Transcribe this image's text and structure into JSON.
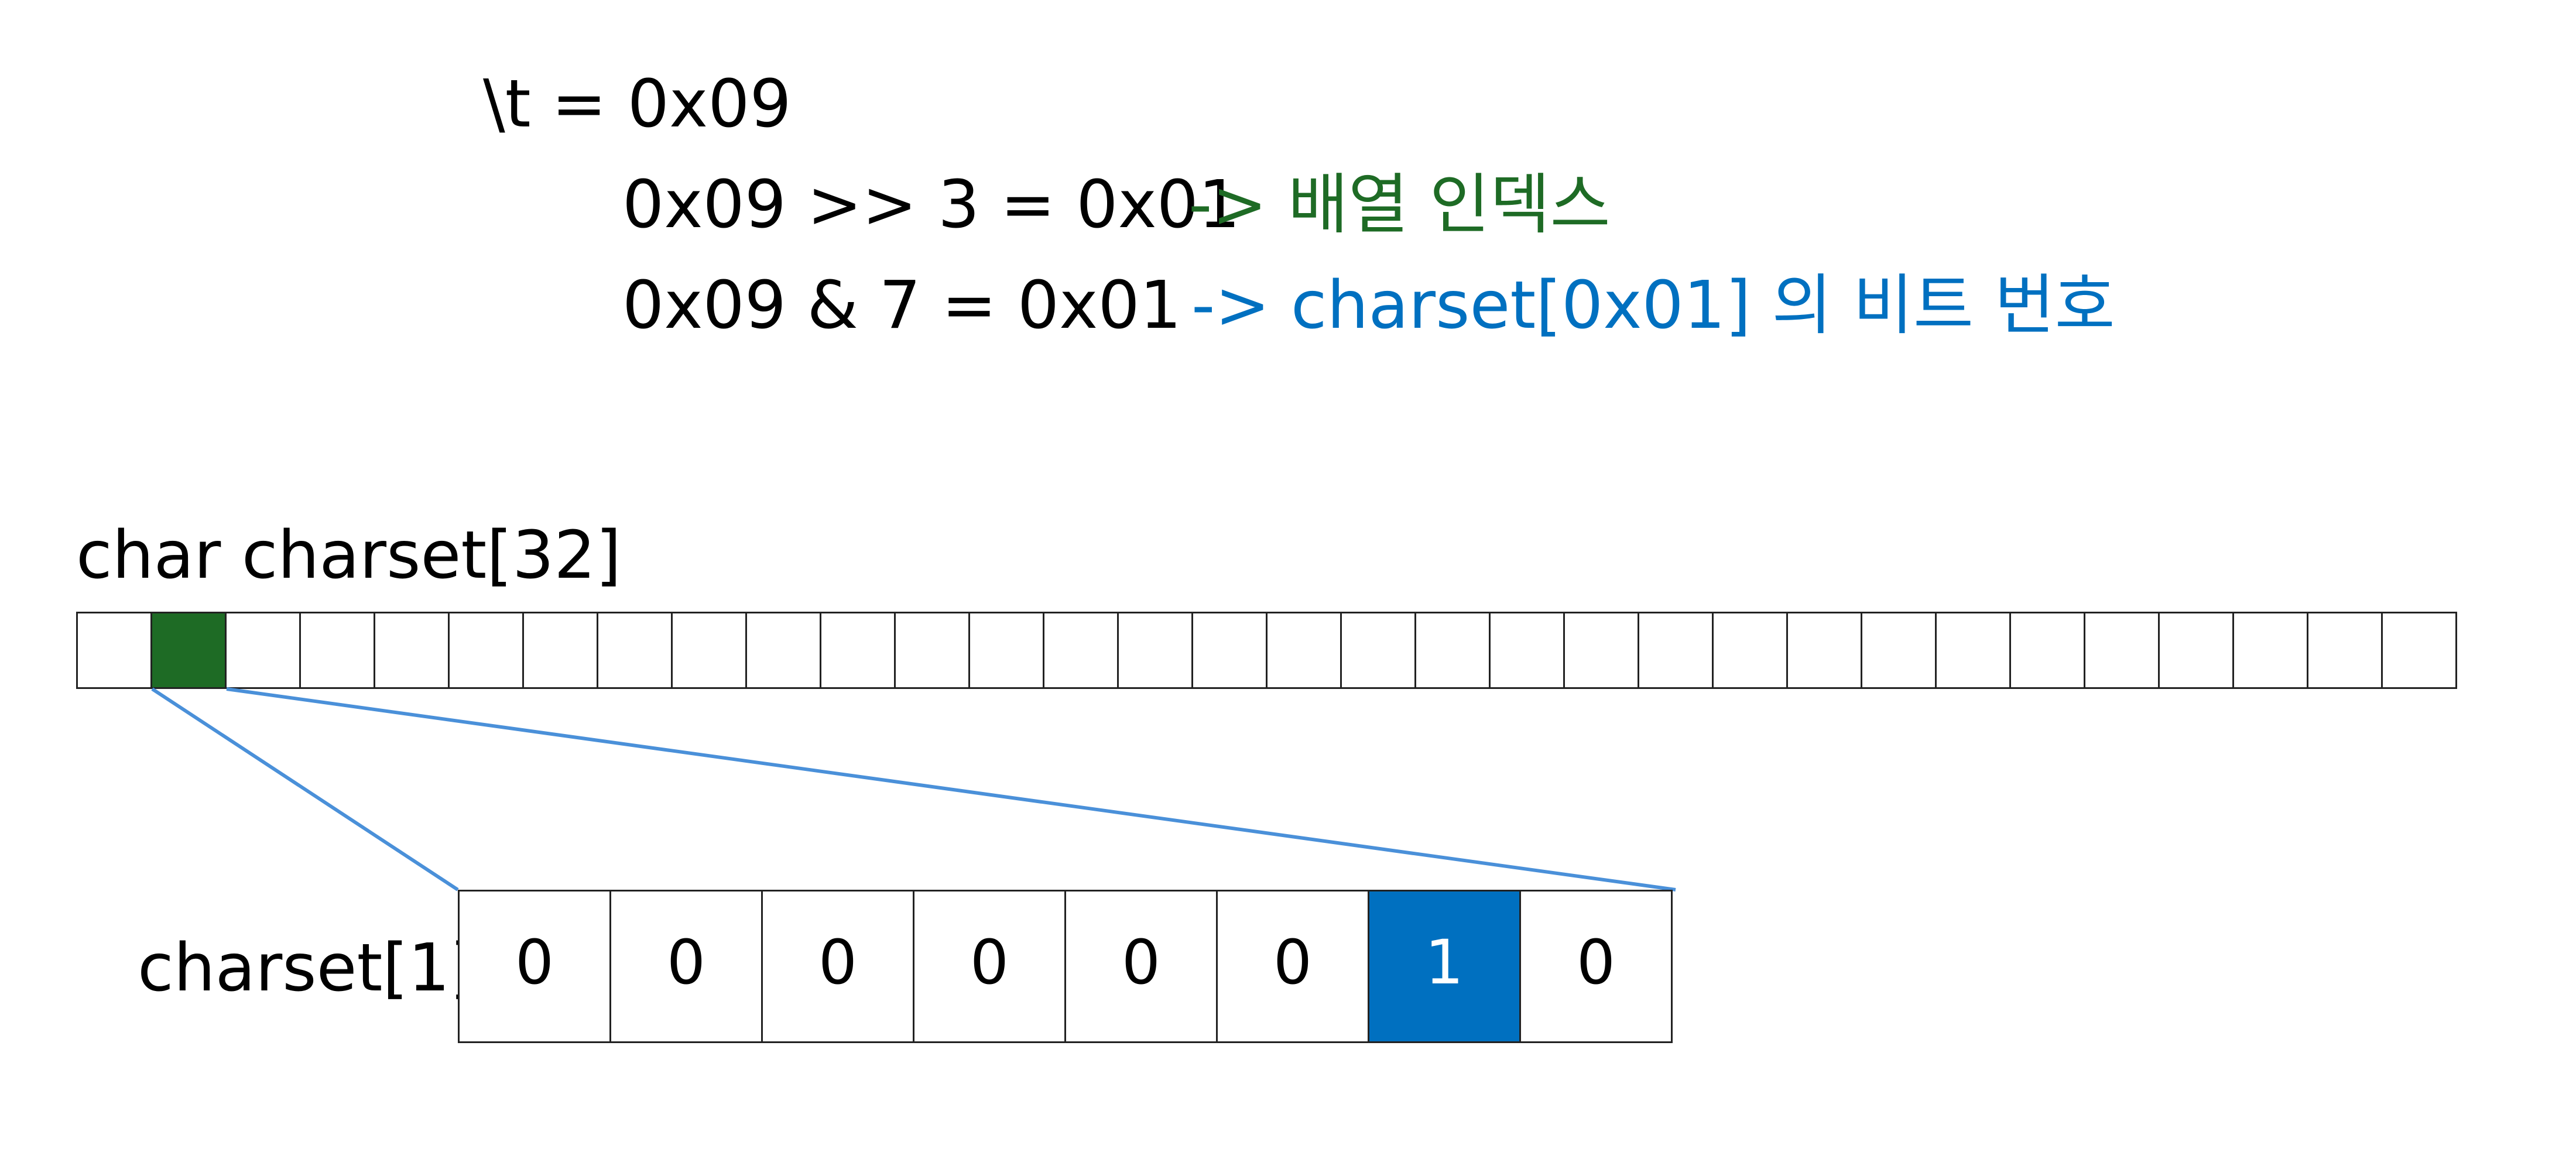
{
  "expressions": {
    "title": "\\t = 0x09",
    "shift": "0x09 >> 3 = 0x01",
    "and": "0x09 & 7 = 0x01",
    "shift_note": "-> 배열 인덱스",
    "and_note": "-> charset[0x01] 의 비트 번호"
  },
  "array": {
    "label": "char charset[32]",
    "length": 32,
    "highlight_index": 1,
    "highlight_color": "#1e6b25"
  },
  "bits": {
    "label": "charset[1]",
    "values": [
      "0",
      "0",
      "0",
      "0",
      "0",
      "0",
      "1",
      "0"
    ],
    "set_index": 6,
    "set_color": "#0070c0"
  },
  "colors": {
    "connector": "#4a90d9",
    "note_green": "#1e6b25",
    "note_blue": "#0070c0"
  }
}
